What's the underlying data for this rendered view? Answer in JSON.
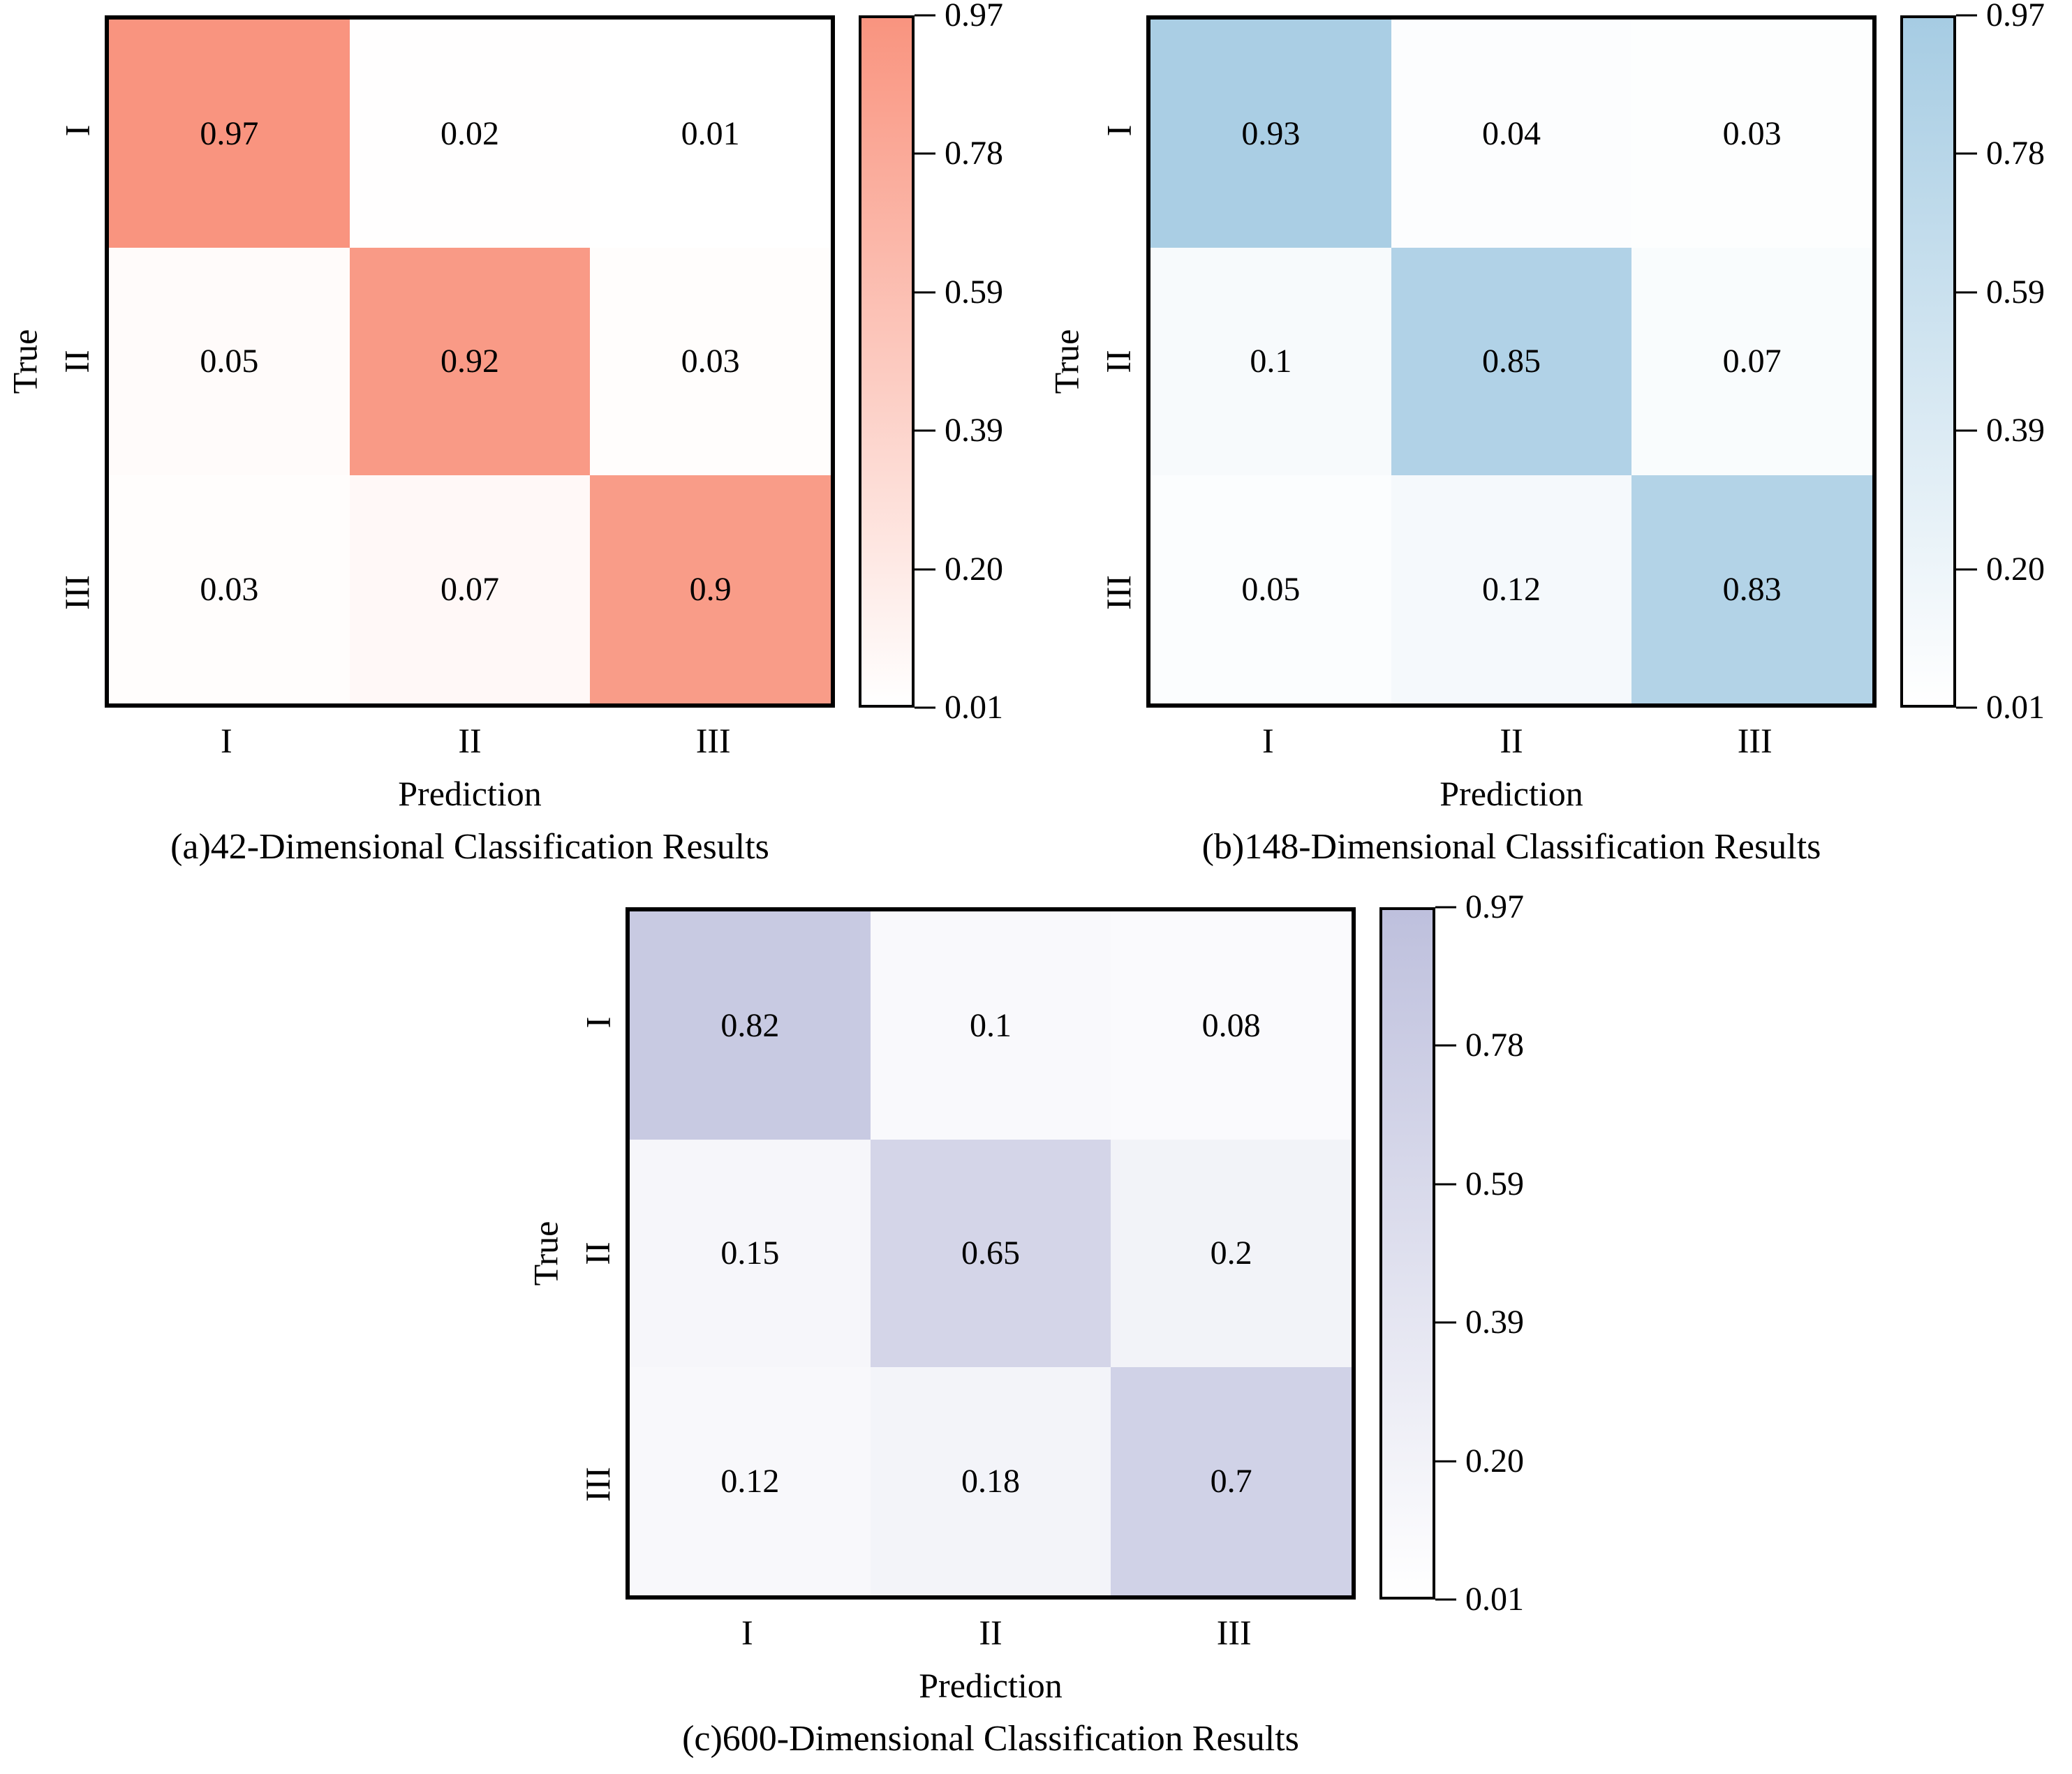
{
  "chart_data": [
    {
      "type": "heatmap",
      "row": "top",
      "title": "(a)42-Dimensional Classification Results",
      "xlabel": "Prediction",
      "ylabel": "True",
      "x_categories": [
        "I",
        "II",
        "III"
      ],
      "y_categories": [
        "I",
        "II",
        "III"
      ],
      "matrix": [
        [
          0.97,
          0.02,
          0.01
        ],
        [
          0.05,
          0.92,
          0.03
        ],
        [
          0.03,
          0.07,
          0.9
        ]
      ],
      "cell_labels": [
        [
          "0.97",
          "0.02",
          "0.01"
        ],
        [
          "0.05",
          "0.92",
          "0.03"
        ],
        [
          "0.03",
          "0.07",
          "0.9"
        ]
      ],
      "vmin": 0.01,
      "vmax": 0.97,
      "colorbar_ticks": [
        "0.97",
        "0.78",
        "0.59",
        "0.39",
        "0.20",
        "0.01"
      ],
      "colors": {
        "low": "#FFFFFF",
        "high": "#F9947F"
      },
      "grid": false,
      "legend_position": "right-colorbar"
    },
    {
      "type": "heatmap",
      "row": "top",
      "title": "(b)148-Dimensional Classification Results",
      "xlabel": "Prediction",
      "ylabel": "True",
      "x_categories": [
        "I",
        "II",
        "III"
      ],
      "y_categories": [
        "I",
        "II",
        "III"
      ],
      "matrix": [
        [
          0.93,
          0.04,
          0.03
        ],
        [
          0.1,
          0.85,
          0.07
        ],
        [
          0.05,
          0.12,
          0.83
        ]
      ],
      "cell_labels": [
        [
          "0.93",
          "0.04",
          "0.03"
        ],
        [
          "0.1",
          "0.85",
          "0.07"
        ],
        [
          "0.05",
          "0.12",
          "0.83"
        ]
      ],
      "vmin": 0.01,
      "vmax": 0.97,
      "colorbar_ticks": [
        "0.97",
        "0.78",
        "0.59",
        "0.39",
        "0.20",
        "0.01"
      ],
      "colors": {
        "low": "#FFFFFF",
        "high": "#A6CCE3"
      },
      "grid": false,
      "legend_position": "right-colorbar"
    },
    {
      "type": "heatmap",
      "row": "bottom",
      "title": "(c)600-Dimensional Classification Results",
      "xlabel": "Prediction",
      "ylabel": "True",
      "x_categories": [
        "I",
        "II",
        "III"
      ],
      "y_categories": [
        "I",
        "II",
        "III"
      ],
      "matrix": [
        [
          0.82,
          0.1,
          0.08
        ],
        [
          0.15,
          0.65,
          0.2
        ],
        [
          0.12,
          0.18,
          0.7
        ]
      ],
      "cell_labels": [
        [
          "0.82",
          "0.1",
          "0.08"
        ],
        [
          "0.15",
          "0.65",
          "0.2"
        ],
        [
          "0.12",
          "0.18",
          "0.7"
        ]
      ],
      "vmin": 0.01,
      "vmax": 0.97,
      "colorbar_ticks": [
        "0.97",
        "0.78",
        "0.59",
        "0.39",
        "0.20",
        "0.01"
      ],
      "colors": {
        "low": "#FFFFFF",
        "high": "#BEC0DD"
      },
      "grid": false,
      "legend_position": "right-colorbar"
    }
  ]
}
